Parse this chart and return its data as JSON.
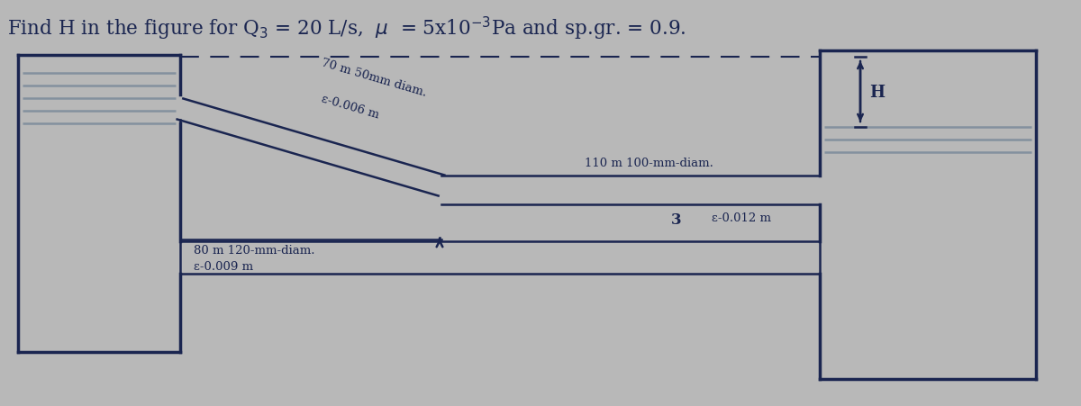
{
  "bg_color": "#b8b8b8",
  "line_color": "#1a2550",
  "water_color": "#7a8a9a",
  "pipe1_label_line1": "70 m 50mm diam.",
  "pipe1_label_line2": "ε-0.006 m",
  "pipe2_label": "110 m 100-mm-diam.",
  "pipe3_label_line1": "80 m 120-mm-diam.",
  "pipe3_label_line2": "ε-0.009 m",
  "pipe2_roughness": "ε-0.012 m",
  "node3_label": "3",
  "H_label": "H",
  "title_normal1": "Find H in the figure for Q",
  "title_sub": "3",
  "title_normal2": " = 20 L/s, ",
  "title_mu": "μ",
  "title_normal3": " = 5x10",
  "title_super": "-3",
  "title_normal4": "Pa and sp.gr. = 0.9."
}
